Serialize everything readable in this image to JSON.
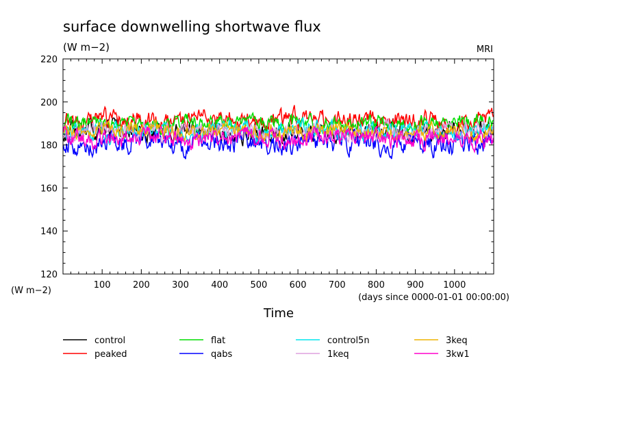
{
  "chart_data": {
    "type": "line",
    "title": "surface downwelling shortwave flux",
    "subtitle": "(W m−2)",
    "source_label": "MRI",
    "ylabel": "(W m−2)",
    "xlabel": "Time",
    "x_units_note": "(days since 0000-01-01 00:00:00)",
    "xlim": [
      0,
      1100
    ],
    "ylim": [
      120,
      220
    ],
    "x_ticks": [
      100,
      200,
      300,
      400,
      500,
      600,
      700,
      800,
      900,
      1000
    ],
    "y_ticks": [
      120,
      140,
      160,
      180,
      200,
      220
    ],
    "x_tick_labels": [
      "100",
      "200",
      "300",
      "400",
      "500",
      "600",
      "700",
      "800",
      "900",
      "1000"
    ],
    "y_tick_labels": [
      "120",
      "140",
      "160",
      "180",
      "200",
      "220"
    ],
    "grid": false,
    "legend_position": "bottom",
    "series": [
      {
        "name": "control",
        "color": "#000000",
        "mean": 186.0,
        "amp": 3.2,
        "seed": 11
      },
      {
        "name": "peaked",
        "color": "#ff0000",
        "mean": 191.5,
        "amp": 3.0,
        "seed": 23
      },
      {
        "name": "flat",
        "color": "#00dd00",
        "mean": 190.0,
        "amp": 2.6,
        "seed": 37
      },
      {
        "name": "qabs",
        "color": "#0000ff",
        "mean": 181.0,
        "amp": 3.6,
        "seed": 41
      },
      {
        "name": "control5n",
        "color": "#00e5ee",
        "mean": 186.5,
        "amp": 2.8,
        "seed": 53
      },
      {
        "name": "1keq",
        "color": "#dda0dd",
        "mean": 186.0,
        "amp": 2.8,
        "seed": 67
      },
      {
        "name": "3keq",
        "color": "#eeb400",
        "mean": 186.5,
        "amp": 2.6,
        "seed": 71
      },
      {
        "name": "3kw1",
        "color": "#ff00cc",
        "mean": 183.0,
        "amp": 3.0,
        "seed": 89
      }
    ]
  }
}
